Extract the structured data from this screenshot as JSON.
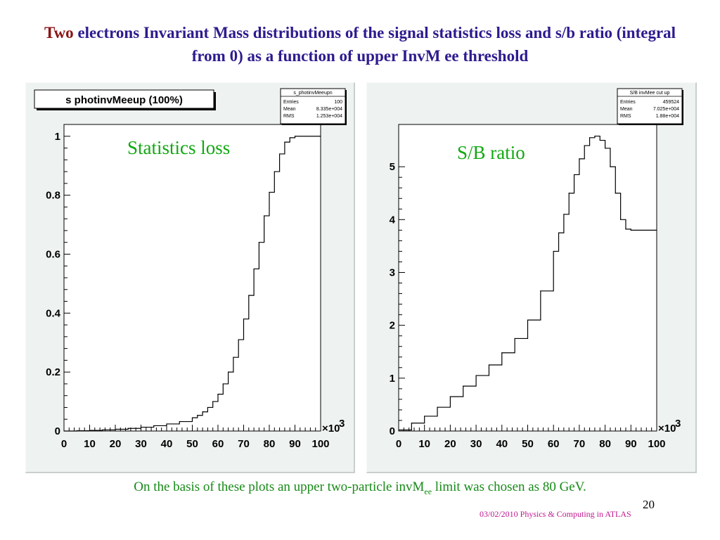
{
  "slide": {
    "title_lead": "Two",
    "title_rest": " electrons Invariant Mass distributions of the signal statistics loss and s/b ratio (integral from 0) as a function of upper InvM ee threshold",
    "conclusion_pre": "On the basis of these plots an upper two-particle invM",
    "conclusion_sub": "ee",
    "conclusion_post": " limit was chosen as 80 GeV.",
    "page_number": "20",
    "footer": "03/02/2010 Physics & Computing in ATLAS"
  },
  "colors": {
    "title": "#2d1b8e",
    "title_lead": "#8b1414",
    "label_green": "#11a811",
    "footer": "#c0168f",
    "canvas_bg": "#eef2f1",
    "plot_bg": "#ffffff"
  },
  "chart_data": [
    {
      "type": "line",
      "step": true,
      "title": "s photinvMeeup (100%)",
      "overlay_label": "Statistics loss",
      "xlabel": "",
      "ylabel": "",
      "x_multiplier_label": "×10",
      "x_multiplier_exp": "3",
      "xlim": [
        0,
        100
      ],
      "ylim": [
        0,
        1.04
      ],
      "x_ticks": [
        0,
        10,
        20,
        30,
        40,
        50,
        60,
        70,
        80,
        90,
        100
      ],
      "x_tick_labels": [
        "0",
        "10",
        "20",
        "30",
        "40",
        "50",
        "60",
        "70",
        "80",
        "90",
        "100"
      ],
      "y_ticks": [
        0,
        0.2,
        0.4,
        0.6,
        0.8,
        1
      ],
      "y_tick_labels": [
        "0",
        "0.2",
        "0.4",
        "0.6",
        "0.8",
        "1"
      ],
      "stats_box": {
        "name": "s_photinvMeeupn",
        "rows": [
          {
            "label": "Entries",
            "value": "100"
          },
          {
            "label": "Mean",
            "value": "8.335e+004"
          },
          {
            "label": "RMS",
            "value": "1.253e+004"
          }
        ]
      },
      "x": [
        0,
        5,
        10,
        15,
        20,
        25,
        30,
        35,
        40,
        45,
        50,
        52,
        54,
        56,
        58,
        60,
        62,
        64,
        66,
        68,
        70,
        72,
        74,
        76,
        78,
        80,
        82,
        84,
        86,
        88,
        90,
        100
      ],
      "values": [
        0.0,
        0.001,
        0.002,
        0.004,
        0.006,
        0.009,
        0.013,
        0.018,
        0.024,
        0.032,
        0.045,
        0.053,
        0.065,
        0.08,
        0.1,
        0.125,
        0.16,
        0.2,
        0.25,
        0.31,
        0.38,
        0.46,
        0.55,
        0.64,
        0.73,
        0.81,
        0.88,
        0.94,
        0.98,
        0.995,
        1.0,
        1.0
      ]
    },
    {
      "type": "line",
      "step": true,
      "title": "S/B invMee cut up",
      "overlay_label": "S/B ratio",
      "xlabel": "",
      "ylabel": "",
      "x_multiplier_label": "×10",
      "x_multiplier_exp": "3",
      "xlim": [
        0,
        100
      ],
      "ylim": [
        0,
        5.8
      ],
      "x_ticks": [
        0,
        10,
        20,
        30,
        40,
        50,
        60,
        70,
        80,
        90,
        100
      ],
      "x_tick_labels": [
        "0",
        "10",
        "20",
        "30",
        "40",
        "50",
        "60",
        "70",
        "80",
        "90",
        "100"
      ],
      "y_ticks": [
        0,
        1,
        2,
        3,
        4,
        5
      ],
      "y_tick_labels": [
        "0",
        "1",
        "2",
        "3",
        "4",
        "5"
      ],
      "stats_box": {
        "name": "S/B invMee cut up",
        "rows": [
          {
            "label": "Entries",
            "value": "459524"
          },
          {
            "label": "Mean",
            "value": "7.025e+004"
          },
          {
            "label": "RMS",
            "value": "1.88e+004"
          }
        ]
      },
      "x": [
        0,
        5,
        10,
        15,
        20,
        25,
        30,
        35,
        40,
        45,
        50,
        55,
        60,
        62,
        64,
        66,
        68,
        70,
        72,
        74,
        76,
        78,
        80,
        82,
        84,
        86,
        88,
        90,
        100
      ],
      "values": [
        0.02,
        0.15,
        0.28,
        0.45,
        0.65,
        0.85,
        1.05,
        1.25,
        1.48,
        1.75,
        2.1,
        2.65,
        3.4,
        3.75,
        4.1,
        4.5,
        4.85,
        5.15,
        5.4,
        5.55,
        5.58,
        5.5,
        5.35,
        5.0,
        4.5,
        4.0,
        3.82,
        3.8,
        3.8
      ]
    }
  ]
}
